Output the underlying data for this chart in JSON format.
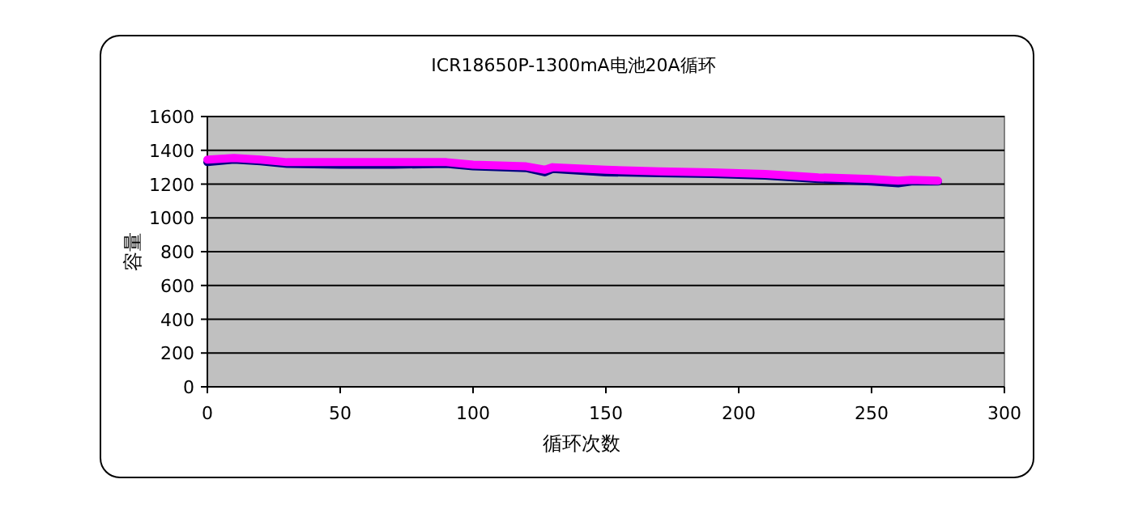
{
  "chart_data": {
    "type": "line",
    "title": "ICR18650P-1300mA电池20A循环",
    "xlabel": "循环次数",
    "ylabel": "容量",
    "xlim": [
      0,
      300
    ],
    "xticks": [
      0,
      50,
      100,
      150,
      200,
      250,
      300
    ],
    "ylim": [
      0,
      1600
    ],
    "yticks": [
      0,
      200,
      400,
      600,
      800,
      1000,
      1200,
      1400,
      1600
    ],
    "grid": "y",
    "marker": "none",
    "line_style": "solid",
    "series": [
      {
        "color": "#000080",
        "x": [
          0,
          10,
          20,
          30,
          50,
          70,
          90,
          100,
          120,
          127,
          130,
          150,
          170,
          190,
          210,
          230,
          250,
          260,
          265,
          275
        ],
        "values": [
          1330,
          1345,
          1335,
          1320,
          1315,
          1315,
          1320,
          1305,
          1295,
          1270,
          1290,
          1270,
          1265,
          1260,
          1250,
          1230,
          1215,
          1205,
          1215,
          1215
        ]
      },
      {
        "color": "#ff00ff",
        "x": [
          0,
          10,
          20,
          30,
          50,
          70,
          90,
          100,
          120,
          127,
          130,
          150,
          170,
          190,
          210,
          230,
          250,
          260,
          265,
          275
        ],
        "values": [
          1345,
          1355,
          1345,
          1330,
          1330,
          1330,
          1330,
          1315,
          1305,
          1285,
          1300,
          1285,
          1275,
          1270,
          1260,
          1240,
          1230,
          1220,
          1225,
          1220
        ]
      }
    ]
  }
}
